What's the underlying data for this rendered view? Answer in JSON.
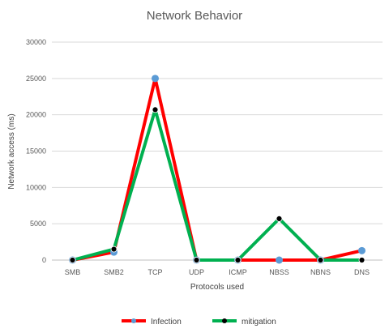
{
  "chart_data": {
    "type": "line",
    "title": "Network Behavior",
    "xlabel": "Protocols used",
    "ylabel": "Network access (ms)",
    "categories": [
      "SMB",
      "SMB2",
      "TCP",
      "UDP",
      "ICMP",
      "NBSS",
      "NBNS",
      "DNS"
    ],
    "ylim": [
      0,
      30000
    ],
    "yticks": [
      "0",
      "5000",
      "10000",
      "15000",
      "20000",
      "25000",
      "30000"
    ],
    "grid": true,
    "legend_position": "bottom",
    "series": [
      {
        "name": "Infection",
        "values": [
          0,
          1100,
          25000,
          0,
          0,
          0,
          0,
          1300
        ],
        "line_color": "#ff0000",
        "marker_color": "#5b9bd5"
      },
      {
        "name": "mitigation",
        "values": [
          0,
          1500,
          20700,
          0,
          0,
          5700,
          0,
          0
        ],
        "line_color": "#00b050",
        "marker_color": "#000000"
      }
    ]
  }
}
